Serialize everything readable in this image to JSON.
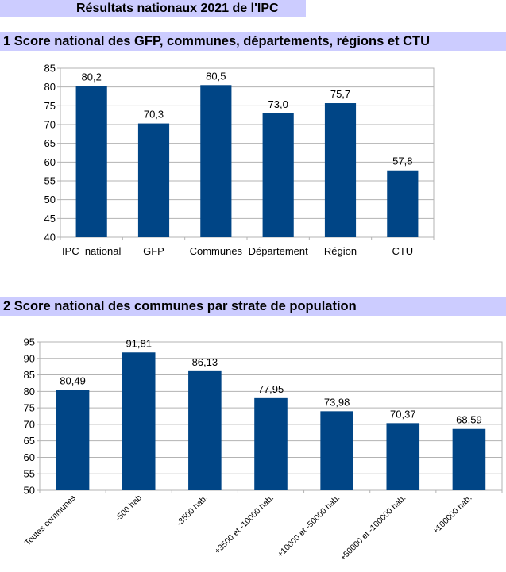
{
  "page_title": "Résultats nationaux 2021 de l'IPC",
  "sections": [
    {
      "title": "1 Score national des GFP, communes, départements, régions et CTU"
    },
    {
      "title": "2 Score national des communes par strate de population"
    }
  ],
  "colors": {
    "bar": "#004586",
    "header_band": "#ccccff",
    "grid": "#b3b3b3"
  },
  "chart_data": [
    {
      "type": "bar",
      "categories": [
        "IPC  national",
        "GFP",
        "Communes",
        "Département",
        "Région",
        "CTU"
      ],
      "values": [
        80.2,
        70.3,
        80.5,
        73.0,
        75.7,
        57.8
      ],
      "value_labels": [
        "80,2",
        "70,3",
        "80,5",
        "73,0",
        "75,7",
        "57,8"
      ],
      "ylim": [
        40,
        85
      ],
      "yticks": [
        40,
        45,
        50,
        55,
        60,
        65,
        70,
        75,
        80,
        85
      ],
      "grid": true,
      "title": "",
      "xlabel": "",
      "ylabel": ""
    },
    {
      "type": "bar",
      "categories": [
        "Toutes communes",
        "-500 hab",
        "-3500 hab.",
        "+3500 et -10000 hab.",
        "+10000 et -50000 hab.",
        "+50000 et -100000 hab.",
        "+100000 hab."
      ],
      "values": [
        80.49,
        91.81,
        86.13,
        77.95,
        73.98,
        70.37,
        68.59
      ],
      "value_labels": [
        "80,49",
        "91,81",
        "86,13",
        "77,95",
        "73,98",
        "70,37",
        "68,59"
      ],
      "ylim": [
        50,
        95
      ],
      "yticks": [
        50,
        55,
        60,
        65,
        70,
        75,
        80,
        85,
        90,
        95
      ],
      "grid": true,
      "title": "",
      "xlabel": "",
      "ylabel": ""
    }
  ]
}
